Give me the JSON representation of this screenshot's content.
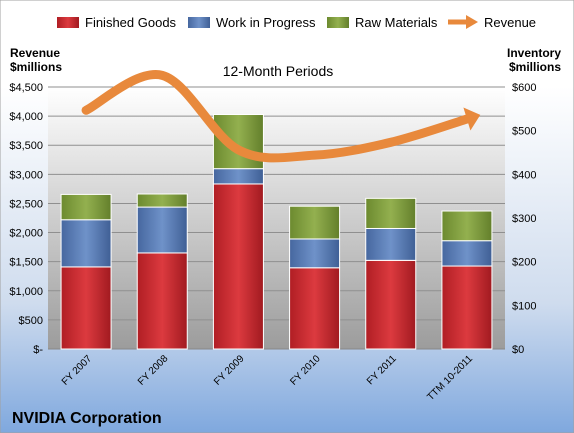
{
  "chart_data": {
    "type": "bar",
    "subtitle": "12-Month Periods",
    "company": "NVIDIA Corporation",
    "left_axis": {
      "label_line1": "Revenue",
      "label_line2": "$millions",
      "ylim": [
        0,
        4500
      ],
      "ticks": [
        {
          "value": 0,
          "label": "$-"
        },
        {
          "value": 500,
          "label": "$500"
        },
        {
          "value": 1000,
          "label": "$1,000"
        },
        {
          "value": 1500,
          "label": "$1,500"
        },
        {
          "value": 2000,
          "label": "$2,000"
        },
        {
          "value": 2500,
          "label": "$2,500"
        },
        {
          "value": 3000,
          "label": "$3,000"
        },
        {
          "value": 3500,
          "label": "$3,500"
        },
        {
          "value": 4000,
          "label": "$4,000"
        },
        {
          "value": 4500,
          "label": "$4,500"
        }
      ]
    },
    "right_axis": {
      "label_line1": "Inventory",
      "label_line2": "$millions",
      "ylim": [
        0,
        600
      ],
      "ticks": [
        {
          "value": 0,
          "label": "$0"
        },
        {
          "value": 100,
          "label": "$100"
        },
        {
          "value": 200,
          "label": "$200"
        },
        {
          "value": 300,
          "label": "$300"
        },
        {
          "value": 400,
          "label": "$400"
        },
        {
          "value": 500,
          "label": "$500"
        },
        {
          "value": 600,
          "label": "$600"
        }
      ]
    },
    "categories": [
      "FY 2007",
      "FY 2008",
      "FY 2009",
      "FY 2010",
      "FY 2011",
      "TTM 10-2011"
    ],
    "stacked_series": [
      {
        "name": "Finished Goods",
        "axis": "right",
        "color": "#c0272d",
        "values": [
          188,
          220,
          378,
          186,
          203,
          190
        ]
      },
      {
        "name": "Work in Progress",
        "axis": "right",
        "color": "#4e73ae",
        "values": [
          108,
          105,
          35,
          66,
          73,
          58
        ]
      },
      {
        "name": "Raw Materials",
        "axis": "right",
        "color": "#7b9a3a",
        "values": [
          58,
          30,
          124,
          75,
          69,
          68
        ]
      }
    ],
    "line_series": {
      "name": "Revenue",
      "axis": "left",
      "color": "#e8893c",
      "values": [
        4100,
        4700,
        3420,
        3330,
        3550,
        3950
      ]
    },
    "grid": true,
    "legend_position": "top"
  }
}
